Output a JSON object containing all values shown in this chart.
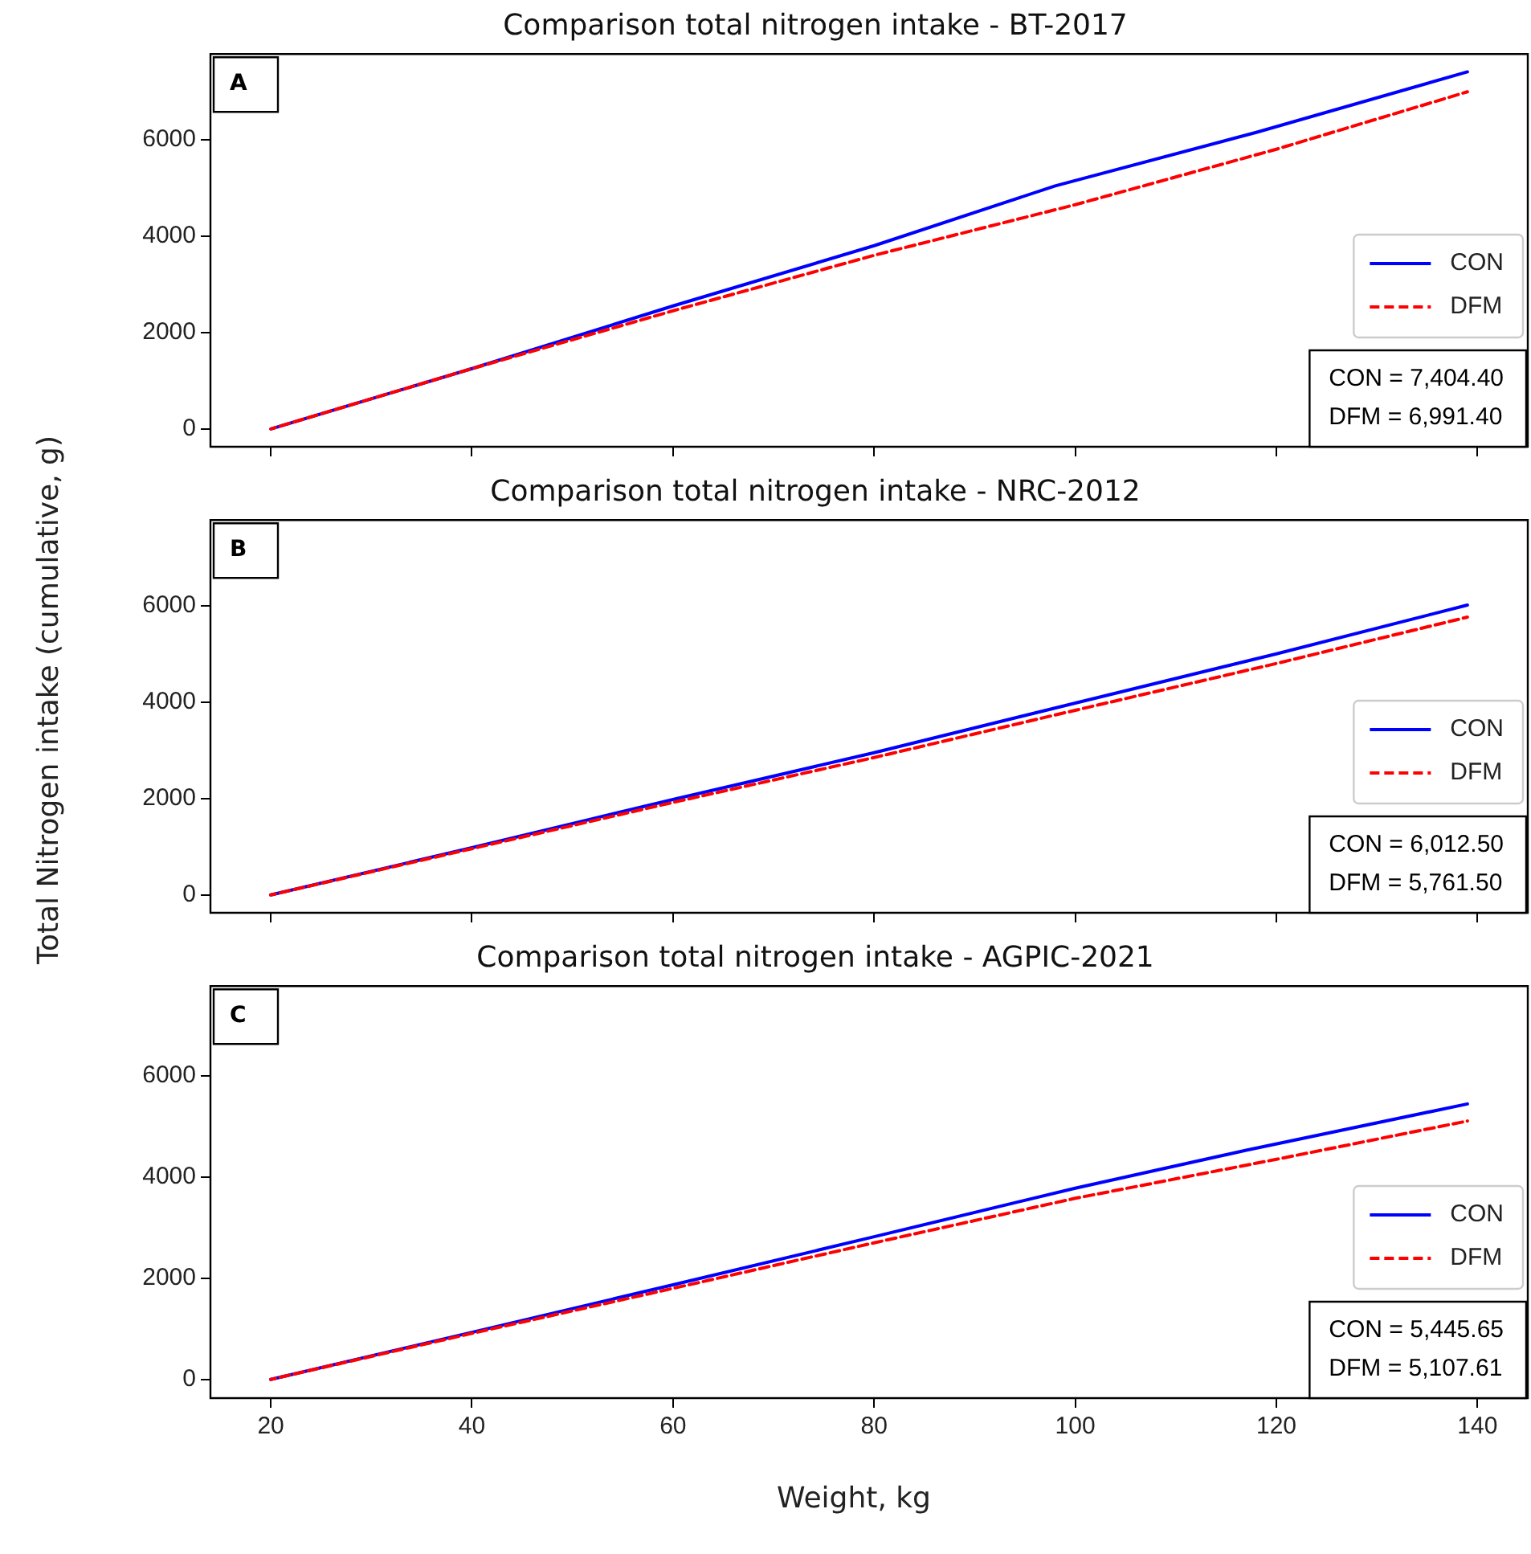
{
  "chart_data": [
    {
      "type": "line",
      "title": "Comparison total nitrogen intake - BT-2017",
      "xlim": [
        14,
        145
      ],
      "xticks": [
        20,
        40,
        60,
        80,
        100,
        120,
        140
      ],
      "ylim": [
        -370,
        7775
      ],
      "yticks": [
        0,
        2000,
        4000,
        6000
      ],
      "tick_labels": "y",
      "legend": "right",
      "annotations": [
        "A",
        "CON = 7,404.40",
        "DFM = 6,991.40"
      ],
      "series": [
        {
          "name": "CON",
          "color": "#0000ff",
          "line_style": "solid",
          "x": [
            20,
            40,
            60,
            80,
            98,
            118,
            139
          ],
          "values": [
            0,
            1250,
            2550,
            3800,
            5040,
            6150,
            7404.4
          ]
        },
        {
          "name": "DFM",
          "color": "#ff0000",
          "line_style": "dashed",
          "x": [
            20,
            40,
            60,
            80,
            100,
            120,
            139
          ],
          "values": [
            0,
            1250,
            2450,
            3600,
            4650,
            5800,
            6991.4
          ]
        }
      ]
    },
    {
      "type": "line",
      "title": "Comparison total nitrogen intake - NRC-2012",
      "ylabel": "Total Nitrogen intake (cumulative, g)",
      "xlim": [
        14,
        145
      ],
      "xticks": [
        20,
        40,
        60,
        80,
        100,
        120,
        140
      ],
      "ylim": [
        -370,
        7775
      ],
      "yticks": [
        0,
        2000,
        4000,
        6000
      ],
      "tick_labels": "y",
      "legend": "right",
      "annotations": [
        "B",
        "CON = 6,012.50",
        "DFM = 5,761.50"
      ],
      "series": [
        {
          "name": "CON",
          "color": "#0000ff",
          "line_style": "solid",
          "x": [
            20,
            40,
            60,
            80,
            100,
            120,
            139
          ],
          "values": [
            0,
            980,
            1980,
            2950,
            3980,
            5000,
            6012.5
          ]
        },
        {
          "name": "DFM",
          "color": "#ff0000",
          "line_style": "dashed",
          "x": [
            20,
            40,
            60,
            80,
            100,
            120,
            139
          ],
          "values": [
            0,
            960,
            1920,
            2850,
            3830,
            4800,
            5761.5
          ]
        }
      ]
    },
    {
      "type": "line",
      "title": "Comparison total nitrogen intake - AGPIC-2021",
      "xlabel": "Weight, kg",
      "xlim": [
        14,
        145
      ],
      "xticks": [
        20,
        40,
        60,
        80,
        100,
        120,
        140
      ],
      "ylim": [
        -370,
        7775
      ],
      "yticks": [
        0,
        2000,
        4000,
        6000
      ],
      "legend": "right",
      "annotations": [
        "C",
        "CON = 5,445.65",
        "DFM = 5,107.61"
      ],
      "series": [
        {
          "name": "CON",
          "color": "#0000ff",
          "line_style": "solid",
          "x": [
            20,
            40,
            60,
            80,
            100,
            117,
            139
          ],
          "values": [
            0,
            930,
            1870,
            2820,
            3780,
            4530,
            5445.65
          ]
        },
        {
          "name": "DFM",
          "color": "#ff0000",
          "line_style": "dashed",
          "x": [
            20,
            40,
            60,
            80,
            100,
            120,
            139
          ],
          "values": [
            0,
            910,
            1800,
            2700,
            3580,
            4350,
            5107.61
          ]
        }
      ]
    }
  ]
}
